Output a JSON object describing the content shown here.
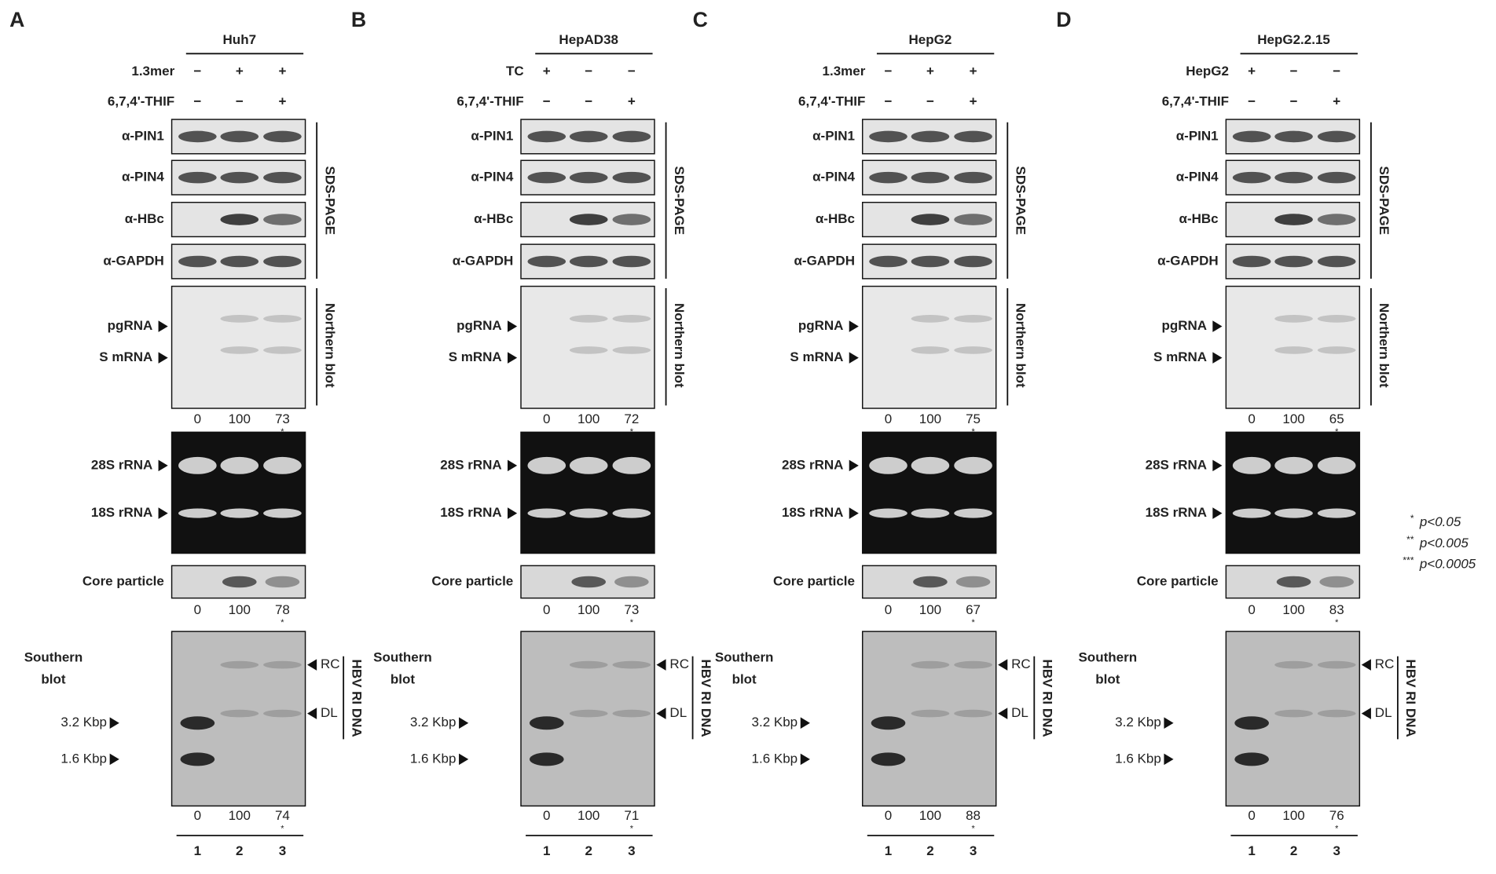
{
  "panels": [
    {
      "letter": "A",
      "cell_line": "Huh7",
      "treatments": [
        {
          "label": "1.3mer",
          "signs": [
            "−",
            "+",
            "+"
          ]
        },
        {
          "label": "6,7,4'-THIF",
          "signs": [
            "−",
            "−",
            "+"
          ]
        }
      ],
      "western": {
        "blots": [
          "α-PIN1",
          "α-PIN4",
          "α-HBc",
          "α-GAPDH"
        ],
        "method": "SDS-PAGE"
      },
      "northern": {
        "bands": [
          "pgRNA",
          "S mRNA"
        ],
        "method": "Northern blot",
        "quant": [
          0,
          100,
          73
        ],
        "sig": "*"
      },
      "rrna": [
        "28S rRNA",
        "18S rRNA"
      ],
      "core": {
        "label": "Core particle",
        "quant": [
          0,
          100,
          78
        ],
        "sig": "*"
      },
      "southern": {
        "title": [
          "Southern",
          "blot"
        ],
        "markers": [
          "3.2 Kbp",
          "1.6 Kbp"
        ],
        "forms": [
          "RC",
          "DL"
        ],
        "method": "HBV RI DNA",
        "quant": [
          0,
          100,
          74
        ],
        "sig": "*"
      },
      "lanes": [
        "1",
        "2",
        "3"
      ]
    },
    {
      "letter": "B",
      "cell_line": "HepAD38",
      "treatments": [
        {
          "label": "TC",
          "signs": [
            "+",
            "−",
            "−"
          ]
        },
        {
          "label": "6,7,4'-THIF",
          "signs": [
            "−",
            "−",
            "+"
          ]
        }
      ],
      "western": {
        "blots": [
          "α-PIN1",
          "α-PIN4",
          "α-HBc",
          "α-GAPDH"
        ],
        "method": "SDS-PAGE"
      },
      "northern": {
        "bands": [
          "pgRNA",
          "S mRNA"
        ],
        "method": "Northern blot",
        "quant": [
          0,
          100,
          72
        ],
        "sig": "*"
      },
      "rrna": [
        "28S rRNA",
        "18S rRNA"
      ],
      "core": {
        "label": "Core particle",
        "quant": [
          0,
          100,
          73
        ],
        "sig": "*"
      },
      "southern": {
        "title": [
          "Southern",
          "blot"
        ],
        "markers": [
          "3.2 Kbp",
          "1.6 Kbp"
        ],
        "forms": [
          "RC",
          "DL"
        ],
        "method": "HBV RI DNA",
        "quant": [
          0,
          100,
          71
        ],
        "sig": "*"
      },
      "lanes": [
        "1",
        "2",
        "3"
      ]
    },
    {
      "letter": "C",
      "cell_line": "HepG2",
      "treatments": [
        {
          "label": "1.3mer",
          "signs": [
            "−",
            "+",
            "+"
          ]
        },
        {
          "label": "6,7,4'-THIF",
          "signs": [
            "−",
            "−",
            "+"
          ]
        }
      ],
      "western": {
        "blots": [
          "α-PIN1",
          "α-PIN4",
          "α-HBc",
          "α-GAPDH"
        ],
        "method": "SDS-PAGE"
      },
      "northern": {
        "bands": [
          "pgRNA",
          "S mRNA"
        ],
        "method": "Northern blot",
        "quant": [
          0,
          100,
          75
        ],
        "sig": "*"
      },
      "rrna": [
        "28S rRNA",
        "18S rRNA"
      ],
      "core": {
        "label": "Core particle",
        "quant": [
          0,
          100,
          67
        ],
        "sig": "*"
      },
      "southern": {
        "title": [
          "Southern",
          "blot"
        ],
        "markers": [
          "3.2 Kbp",
          "1.6 Kbp"
        ],
        "forms": [
          "RC",
          "DL"
        ],
        "method": "HBV RI DNA",
        "quant": [
          0,
          100,
          88
        ],
        "sig": "*"
      },
      "lanes": [
        "1",
        "2",
        "3"
      ]
    },
    {
      "letter": "D",
      "cell_line": "HepG2.2.15",
      "treatments": [
        {
          "label": "HepG2",
          "signs": [
            "+",
            "−",
            "−"
          ]
        },
        {
          "label": "6,7,4'-THIF",
          "signs": [
            "−",
            "−",
            "+"
          ]
        }
      ],
      "western": {
        "blots": [
          "α-PIN1",
          "α-PIN4",
          "α-HBc",
          "α-GAPDH"
        ],
        "method": "SDS-PAGE"
      },
      "northern": {
        "bands": [
          "pgRNA",
          "S mRNA"
        ],
        "method": "Northern blot",
        "quant": [
          0,
          100,
          65
        ],
        "sig": "*"
      },
      "rrna": [
        "28S rRNA",
        "18S rRNA"
      ],
      "core": {
        "label": "Core particle",
        "quant": [
          0,
          100,
          83
        ],
        "sig": "*"
      },
      "southern": {
        "title": [
          "Southern",
          "blot"
        ],
        "markers": [
          "3.2 Kbp",
          "1.6 Kbp"
        ],
        "forms": [
          "RC",
          "DL"
        ],
        "method": "HBV RI DNA",
        "quant": [
          0,
          100,
          76
        ],
        "sig": "*"
      },
      "lanes": [
        "1",
        "2",
        "3"
      ]
    }
  ],
  "legend": [
    {
      "mark": "*",
      "text": "p<0.05"
    },
    {
      "mark": "**",
      "text": "p<0.005"
    },
    {
      "mark": "***",
      "text": "p<0.0005"
    }
  ]
}
